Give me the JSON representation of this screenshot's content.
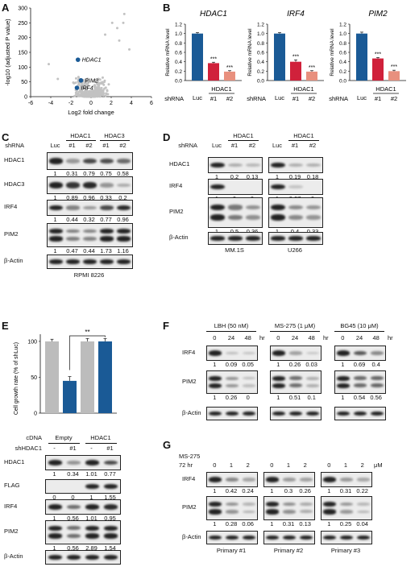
{
  "panels": {
    "A": {
      "label": "A",
      "x_axis_label": "Log2 fold change",
      "x_ticks": [
        "-6",
        "-4",
        "-2",
        "0",
        "2",
        "4",
        "6"
      ],
      "y_ticks": [
        "0",
        "50",
        "100",
        "150",
        "200",
        "250",
        "300"
      ],
      "y_axis_label": "-log10 (adjusted P value)",
      "highlighted": [
        "HDAC1",
        "PIM2",
        "IRF4"
      ]
    },
    "B": {
      "label": "B",
      "y_axis_label": "Relative mRNA level",
      "y_ticks": [
        "0.0",
        "0.2",
        "0.4",
        "0.6",
        "0.8",
        "1.0",
        "1.2"
      ],
      "row_label": "shRNA",
      "group_label": "HDAC1",
      "x_labels": [
        "Luc",
        "#1",
        "#2"
      ],
      "significance": "***"
    },
    "C": {
      "label": "C",
      "row_label": "shRNA",
      "lanes": [
        "Luc",
        "#1",
        "#2",
        "#1",
        "#2"
      ],
      "groups": [
        "HDAC1",
        "HDAC3"
      ],
      "rows": [
        {
          "name": "HDAC1",
          "quant": [
            "1",
            "0.31",
            "0.79",
            "0.75",
            "0.58"
          ]
        },
        {
          "name": "HDAC3",
          "quant": [
            "1",
            "0.89",
            "0.96",
            "0.33",
            "0.2"
          ]
        },
        {
          "name": "IRF4",
          "quant": [
            "1",
            "0.44",
            "0.32",
            "0.77",
            "0.96"
          ]
        },
        {
          "name": "PIM2",
          "quant": [
            "1",
            "0.47",
            "0.44",
            "1.73",
            "1.16"
          ]
        },
        {
          "name": "β-Actin",
          "quant": []
        }
      ],
      "cell_line": "RPMI 8226"
    },
    "D": {
      "label": "D",
      "row_label": "shRNA",
      "lanes": [
        "Luc",
        "#1",
        "#2"
      ],
      "group": "HDAC1",
      "row_names": [
        "HDAC1",
        "IRF4",
        "PIM2",
        "β-Actin"
      ],
      "left_quant": [
        [
          "1",
          "0.2",
          "0.13"
        ],
        [
          "1",
          "0",
          "0"
        ],
        [
          "1",
          "0.5",
          "0.36"
        ]
      ],
      "right_quant": [
        [
          "1",
          "0.19",
          "0.18"
        ],
        [
          "1",
          "0.07",
          "0"
        ],
        [
          "1",
          "0.4",
          "0.33"
        ]
      ],
      "left_cell": "MM.1S",
      "right_cell": "U266"
    },
    "E": {
      "label": "E",
      "y_axis_label": "Cell growth rate (% of shLuc)",
      "y_ticks": [
        "0",
        "50",
        "100"
      ],
      "significance": "**",
      "cdna_label": "cDNA",
      "cdna_groups": [
        "Empty",
        "HDAC1"
      ],
      "sh_label": "shHDAC1",
      "sh_lanes": [
        "-",
        "#1",
        "-",
        "#1"
      ],
      "rows": [
        {
          "name": "HDAC1",
          "quant": [
            "1",
            "0.34",
            "1.01",
            "0.77"
          ]
        },
        {
          "name": "FLAG",
          "quant": [
            "0",
            "0",
            "1",
            "1.55"
          ]
        },
        {
          "name": "IRF4",
          "quant": [
            "1",
            "0.56",
            "1.01",
            "0.95"
          ]
        },
        {
          "name": "PIM2",
          "quant": [
            "1",
            "0.56",
            "2.89",
            "1.54"
          ]
        },
        {
          "name": "β-Actin",
          "quant": []
        }
      ]
    },
    "F": {
      "label": "F",
      "treatments": [
        "LBH (50 nM)",
        "MS-275 (1 μM)",
        "BG45 (10 μM)"
      ],
      "times": [
        "0",
        "24",
        "48"
      ],
      "unit": "hr",
      "row_names": [
        "IRF4",
        "PIM2",
        "β-Actin"
      ],
      "irf4_quant": [
        [
          "1",
          "0.09",
          "0.05"
        ],
        [
          "1",
          "0.26",
          "0.03"
        ],
        [
          "1",
          "0.69",
          "0.4"
        ]
      ],
      "pim2_quant": [
        [
          "1",
          "0.26",
          "0"
        ],
        [
          "1",
          "0.51",
          "0.1"
        ],
        [
          "1",
          "0.54",
          "0.56"
        ]
      ]
    },
    "G": {
      "label": "G",
      "treatment": "MS-275",
      "duration": "72 hr",
      "doses": [
        "0",
        "1",
        "2"
      ],
      "unit": "μM",
      "row_names": [
        "IRF4",
        "PIM2",
        "β-Actin"
      ],
      "irf4_quant": [
        [
          "1",
          "0.42",
          "0.24"
        ],
        [
          "1",
          "0.3",
          "0.26"
        ],
        [
          "1",
          "0.31",
          "0.22"
        ]
      ],
      "pim2_quant": [
        [
          "1",
          "0.28",
          "0.06"
        ],
        [
          "1",
          "0.31",
          "0.13"
        ],
        [
          "1",
          "0.25",
          "0.04"
        ]
      ],
      "samples": [
        "Primary #1",
        "Primary #2",
        "Primary #3"
      ]
    }
  },
  "colors": {
    "blue": "#1a5a96",
    "red": "#d0213b",
    "pink": "#e8907e",
    "grey": "#bcbcbc",
    "scatter": "#c2c2c2"
  },
  "chart_data": [
    {
      "type": "bar",
      "title": "HDAC1",
      "ylabel": "Relative mRNA level",
      "categories": [
        "Luc",
        "#1",
        "#2"
      ],
      "values": [
        1.0,
        0.37,
        0.19
      ],
      "errors": [
        0.02,
        0.02,
        0.02
      ],
      "ylim": [
        0,
        1.2
      ]
    },
    {
      "type": "bar",
      "title": "IRF4",
      "ylabel": "Relative mRNA level",
      "categories": [
        "Luc",
        "#1",
        "#2"
      ],
      "values": [
        1.0,
        0.4,
        0.19
      ],
      "errors": [
        0.02,
        0.04,
        0.02
      ],
      "ylim": [
        0,
        1.2
      ]
    },
    {
      "type": "bar",
      "title": "PIM2",
      "ylabel": "Relative mRNA level",
      "categories": [
        "Luc",
        "#1",
        "#2"
      ],
      "values": [
        1.0,
        0.47,
        0.2
      ],
      "errors": [
        0.03,
        0.02,
        0.02
      ],
      "ylim": [
        0,
        1.2
      ]
    },
    {
      "type": "bar",
      "ylabel": "Cell growth rate (% of shLuc)",
      "categories": [
        "Empty -",
        "Empty #1",
        "HDAC1 -",
        "HDAC1 #1"
      ],
      "values": [
        100,
        45,
        100,
        100
      ],
      "errors": [
        3,
        6,
        4,
        4
      ],
      "ylim": [
        0,
        110
      ]
    },
    {
      "type": "scatter",
      "xlabel": "Log2 fold change",
      "ylabel": "-log10 (adjusted P value)",
      "xlim": [
        -6,
        6
      ],
      "ylim": [
        0,
        300
      ],
      "highlighted_points": [
        {
          "name": "HDAC1",
          "x": -1.3,
          "y": 125
        },
        {
          "name": "PIM2",
          "x": -1.0,
          "y": 55
        },
        {
          "name": "IRF4",
          "x": -1.4,
          "y": 30
        }
      ]
    }
  ]
}
